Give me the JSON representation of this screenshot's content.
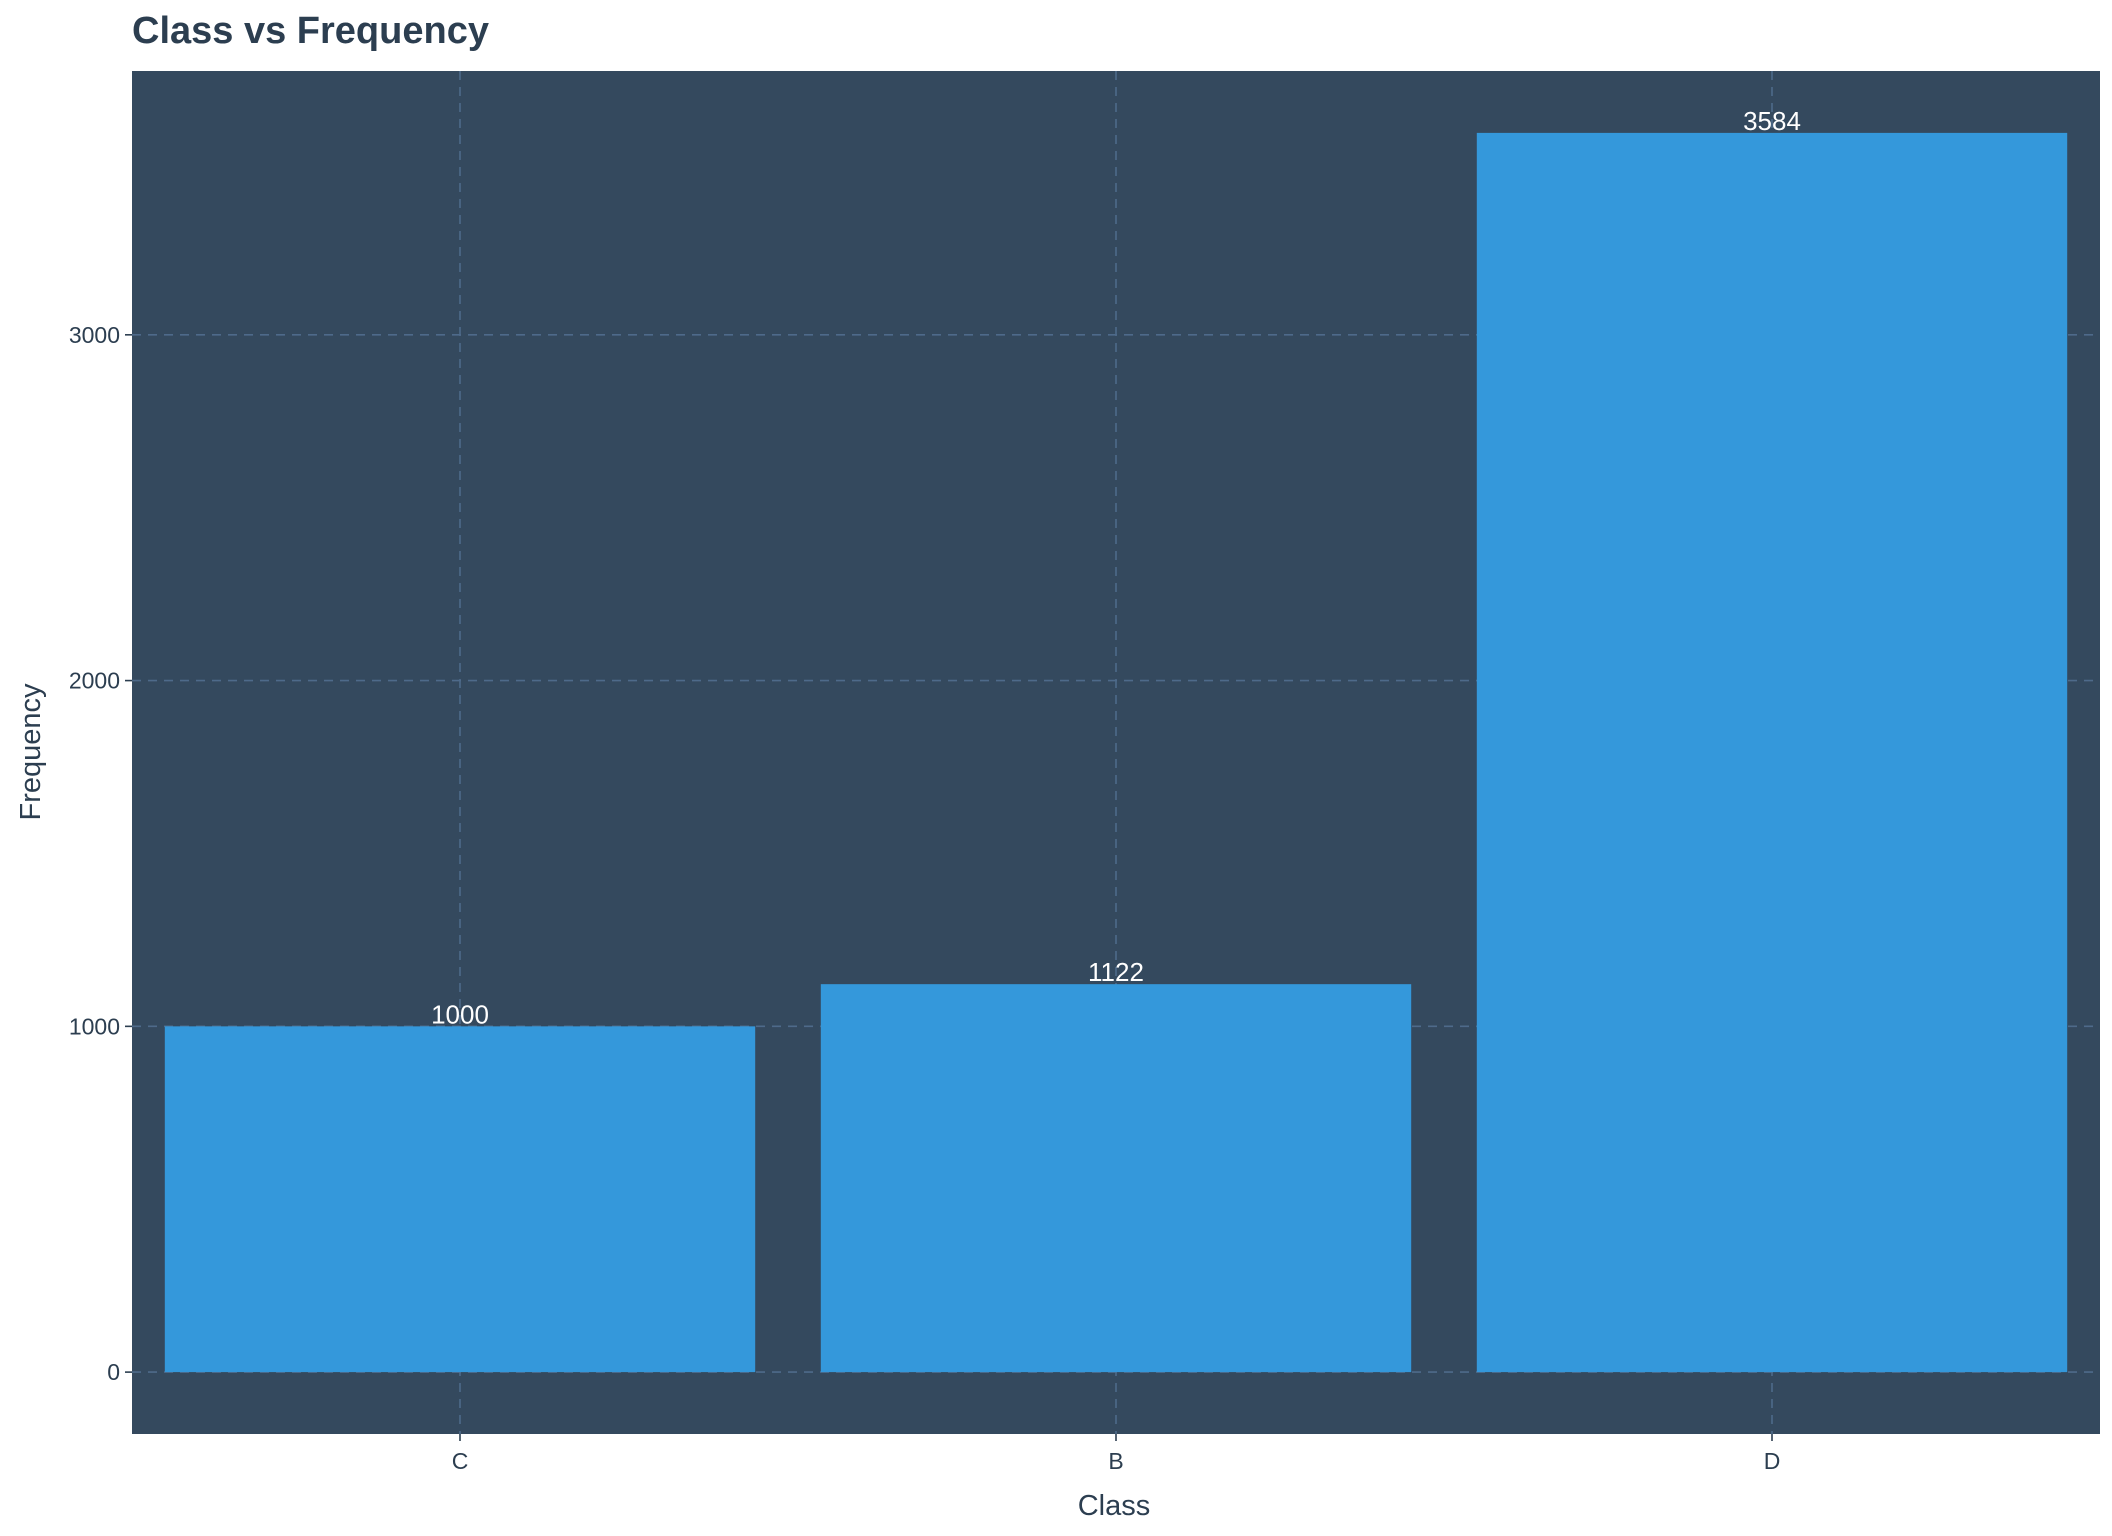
{
  "chart_data": {
    "type": "bar",
    "title": "Class vs Frequency",
    "xlabel": "Class",
    "ylabel": "Frequency",
    "categories": [
      "C",
      "B",
      "D"
    ],
    "values": [
      1000,
      1122,
      3584
    ],
    "value_labels": [
      "1000",
      "1122",
      "3584"
    ],
    "yticks": [
      0,
      1000,
      2000,
      3000
    ],
    "ytick_labels": [
      "0",
      "1000",
      "2000",
      "3000"
    ],
    "ylim": [
      -179,
      3763
    ],
    "grid": true,
    "legend": "none",
    "colors": {
      "bar": "#3498db",
      "panel_background": "#34495e",
      "grid": "#4e6a8a",
      "title_text": "#2c3e50",
      "axis_text": "#2c3e50",
      "data_label_text": "#ffffff"
    }
  }
}
